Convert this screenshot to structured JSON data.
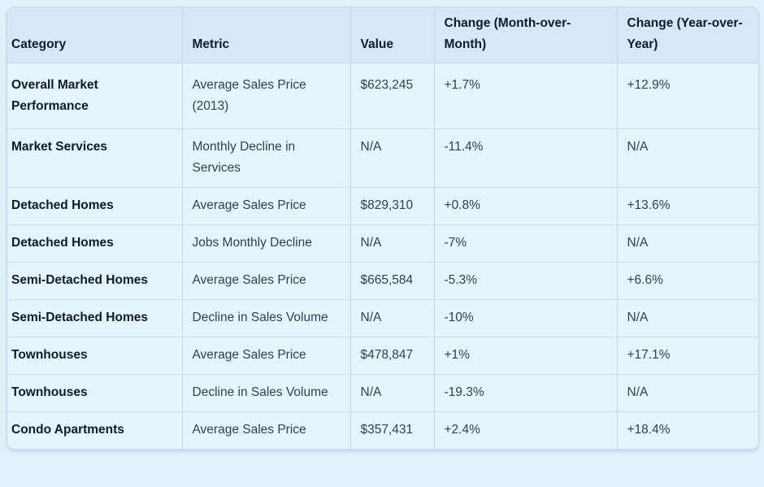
{
  "page": {
    "background": "#e0f1fa"
  },
  "table": {
    "colors": {
      "header_bg": "#d7e6f9",
      "row_bg": "#e2f6fc",
      "border_outer": "#c8d8f0",
      "border_vertical": "#c3d5ec",
      "border_horizontal": "#cde1f2",
      "header_text": "#0d1a30",
      "body_text": "#2f4156"
    },
    "columns": [
      {
        "key": "category",
        "label": "Category"
      },
      {
        "key": "metric",
        "label": "Metric"
      },
      {
        "key": "value",
        "label": "Value"
      },
      {
        "key": "change_mom",
        "label": "Change (Month-over-Month)"
      },
      {
        "key": "change_yoy",
        "label": "Change (Year-over-Year)"
      }
    ],
    "rows": [
      [
        "Overall Market Performance",
        "Average Sales Price (2013)",
        "$623,245",
        "+1.7%",
        "+12.9%"
      ],
      [
        "Market Services",
        "Monthly Decline in Services",
        "N/A",
        "-11.4%",
        "N/A"
      ],
      [
        "Detached Homes",
        "Average Sales Price",
        "$829,310",
        "+0.8%",
        "+13.6%"
      ],
      [
        "Detached Homes",
        "Jobs Monthly Decline",
        "N/A",
        "-7%",
        "N/A"
      ],
      [
        "Semi-Detached Homes",
        "Average Sales Price",
        "$665,584",
        "-5.3%",
        "+6.6%"
      ],
      [
        "Semi-Detached Homes",
        "Decline in Sales Volume",
        "N/A",
        "-10%",
        "N/A"
      ],
      [
        "Townhouses",
        "Average Sales Price",
        "$478,847",
        "+1%",
        "+17.1%"
      ],
      [
        "Townhouses",
        "Decline in Sales Volume",
        "N/A",
        "-19.3%",
        "N/A"
      ],
      [
        "Condo Apartments",
        "Average Sales Price",
        "$357,431",
        "+2.4%",
        "+18.4%"
      ]
    ]
  },
  "chart_data": {
    "type": "table",
    "title": "",
    "columns": [
      "Category",
      "Metric",
      "Value",
      "Change (Month-over-Month)",
      "Change (Year-over-Year)"
    ],
    "rows": [
      [
        "Overall Market Performance",
        "Average Sales Price (2013)",
        "$623,245",
        "+1.7%",
        "+12.9%"
      ],
      [
        "Market Services",
        "Monthly Decline in Services",
        "N/A",
        "-11.4%",
        "N/A"
      ],
      [
        "Detached Homes",
        "Average Sales Price",
        "$829,310",
        "+0.8%",
        "+13.6%"
      ],
      [
        "Detached Homes",
        "Jobs Monthly Decline",
        "N/A",
        "-7%",
        "N/A"
      ],
      [
        "Semi-Detached Homes",
        "Average Sales Price",
        "$665,584",
        "-5.3%",
        "+6.6%"
      ],
      [
        "Semi-Detached Homes",
        "Decline in Sales Volume",
        "N/A",
        "-10%",
        "N/A"
      ],
      [
        "Townhouses",
        "Average Sales Price",
        "$478,847",
        "+1%",
        "+17.1%"
      ],
      [
        "Townhouses",
        "Decline in Sales Volume",
        "N/A",
        "-19.3%",
        "N/A"
      ],
      [
        "Condo Apartments",
        "Average Sales Price",
        "$357,431",
        "+2.4%",
        "+18.4%"
      ]
    ]
  }
}
